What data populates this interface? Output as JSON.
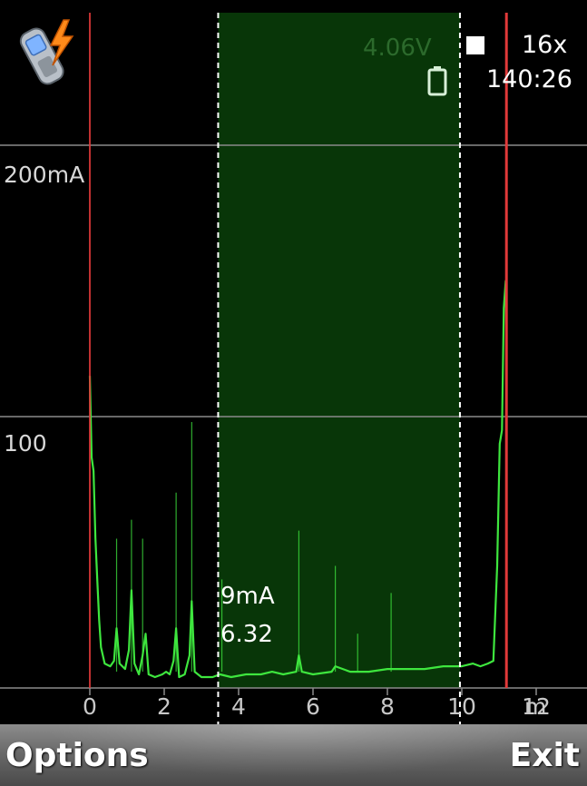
{
  "status": {
    "voltage": "4.06V",
    "zoom": "16x",
    "elapsed": "140:26",
    "battery_icon": "battery-icon",
    "record_icon": "stop-square-icon",
    "app_icon": "phone-lightning-icon"
  },
  "colors": {
    "trace": "#3ee63e",
    "selection": "#083608",
    "marker": "#e23a3a",
    "grid": "#8a8a8a",
    "dashed": "#ffffff"
  },
  "selection": {
    "avg_current": "9mA",
    "avg_charge": "6.32"
  },
  "chart_data": {
    "type": "line",
    "ylim": [
      0,
      240
    ],
    "xlim": [
      -1.2,
      13.2
    ],
    "y_tick_labels": [
      {
        "value": 200,
        "label": "200mA"
      },
      {
        "value": 100,
        "label": "100"
      }
    ],
    "x_tick_labels": [
      "0",
      "2",
      "4",
      "6",
      "8",
      "10",
      "12"
    ],
    "x_ticks": [
      0,
      2,
      4,
      6,
      8,
      10,
      12
    ],
    "x_unit": "m",
    "grid": true,
    "selection_range": [
      3.45,
      9.95
    ],
    "markers": [
      0,
      11.2
    ],
    "series": [
      {
        "values": [
          {
            "x": 0.0,
            "y": 115
          },
          {
            "x": 0.05,
            "y": 85
          },
          {
            "x": 0.1,
            "y": 80
          },
          {
            "x": 0.15,
            "y": 55
          },
          {
            "x": 0.2,
            "y": 40
          },
          {
            "x": 0.25,
            "y": 25
          },
          {
            "x": 0.3,
            "y": 15
          },
          {
            "x": 0.4,
            "y": 9
          },
          {
            "x": 0.55,
            "y": 8
          },
          {
            "x": 0.65,
            "y": 10
          },
          {
            "x": 0.72,
            "y": 22
          },
          {
            "x": 0.8,
            "y": 9
          },
          {
            "x": 0.95,
            "y": 7
          },
          {
            "x": 1.05,
            "y": 14
          },
          {
            "x": 1.12,
            "y": 36
          },
          {
            "x": 1.2,
            "y": 9
          },
          {
            "x": 1.32,
            "y": 5
          },
          {
            "x": 1.42,
            "y": 12
          },
          {
            "x": 1.5,
            "y": 20
          },
          {
            "x": 1.58,
            "y": 5
          },
          {
            "x": 1.75,
            "y": 4
          },
          {
            "x": 1.95,
            "y": 5
          },
          {
            "x": 2.05,
            "y": 6
          },
          {
            "x": 2.15,
            "y": 5
          },
          {
            "x": 2.25,
            "y": 10
          },
          {
            "x": 2.32,
            "y": 22
          },
          {
            "x": 2.4,
            "y": 4
          },
          {
            "x": 2.55,
            "y": 5
          },
          {
            "x": 2.68,
            "y": 12
          },
          {
            "x": 2.74,
            "y": 32
          },
          {
            "x": 2.82,
            "y": 6
          },
          {
            "x": 3.0,
            "y": 4
          },
          {
            "x": 3.3,
            "y": 4
          },
          {
            "x": 3.5,
            "y": 5
          },
          {
            "x": 3.8,
            "y": 4
          },
          {
            "x": 4.2,
            "y": 5
          },
          {
            "x": 4.6,
            "y": 5
          },
          {
            "x": 4.9,
            "y": 6
          },
          {
            "x": 5.2,
            "y": 5
          },
          {
            "x": 5.55,
            "y": 6
          },
          {
            "x": 5.62,
            "y": 12
          },
          {
            "x": 5.7,
            "y": 6
          },
          {
            "x": 6.0,
            "y": 5
          },
          {
            "x": 6.5,
            "y": 6
          },
          {
            "x": 6.6,
            "y": 8
          },
          {
            "x": 7.0,
            "y": 6
          },
          {
            "x": 7.5,
            "y": 6
          },
          {
            "x": 8.0,
            "y": 7
          },
          {
            "x": 8.5,
            "y": 7
          },
          {
            "x": 9.0,
            "y": 7
          },
          {
            "x": 9.5,
            "y": 8
          },
          {
            "x": 10.0,
            "y": 8
          },
          {
            "x": 10.3,
            "y": 9
          },
          {
            "x": 10.5,
            "y": 8
          },
          {
            "x": 10.7,
            "y": 9
          },
          {
            "x": 10.85,
            "y": 10
          },
          {
            "x": 10.95,
            "y": 45
          },
          {
            "x": 11.02,
            "y": 90
          },
          {
            "x": 11.08,
            "y": 95
          },
          {
            "x": 11.13,
            "y": 140
          },
          {
            "x": 11.18,
            "y": 150
          },
          {
            "x": 11.2,
            "y": 130
          }
        ]
      }
    ],
    "spikes": [
      {
        "x": 0.72,
        "y": 55
      },
      {
        "x": 1.12,
        "y": 62
      },
      {
        "x": 1.42,
        "y": 55
      },
      {
        "x": 2.32,
        "y": 72
      },
      {
        "x": 2.74,
        "y": 98
      },
      {
        "x": 3.55,
        "y": 40
      },
      {
        "x": 5.62,
        "y": 58
      },
      {
        "x": 6.6,
        "y": 45
      },
      {
        "x": 7.2,
        "y": 20
      },
      {
        "x": 8.1,
        "y": 35
      }
    ]
  },
  "softkeys": {
    "left": "Options",
    "right": "Exit"
  }
}
